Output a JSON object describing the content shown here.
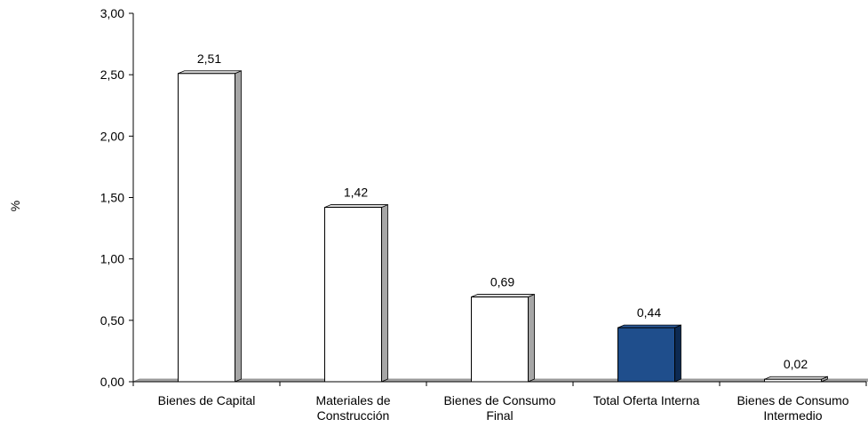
{
  "chart_data": {
    "type": "bar",
    "categories": [
      [
        "Bienes de Capital"
      ],
      [
        "Materiales de",
        "Construcción"
      ],
      [
        "Bienes de Consumo",
        "Final"
      ],
      [
        "Total Oferta Interna"
      ],
      [
        "Bienes de Consumo",
        "Intermedio"
      ]
    ],
    "values": [
      2.51,
      1.42,
      0.69,
      0.44,
      0.02
    ],
    "value_labels": [
      "2,51",
      "1,42",
      "0,69",
      "0,44",
      "0,02"
    ],
    "ylabel": "%",
    "ylim": [
      0,
      3
    ],
    "yticks": [
      "0,00",
      "0,50",
      "1,00",
      "1,50",
      "2,00",
      "2,50",
      "3,00"
    ],
    "grid": false,
    "legend": "none",
    "colors": {
      "default_bar": "#ffffff",
      "highlight_bar": "#1f4e8c",
      "bar_outline": "#000000",
      "bar_shadow": "#a6a6a6",
      "floor": "#a6a6a6"
    },
    "highlight_index": 3
  }
}
